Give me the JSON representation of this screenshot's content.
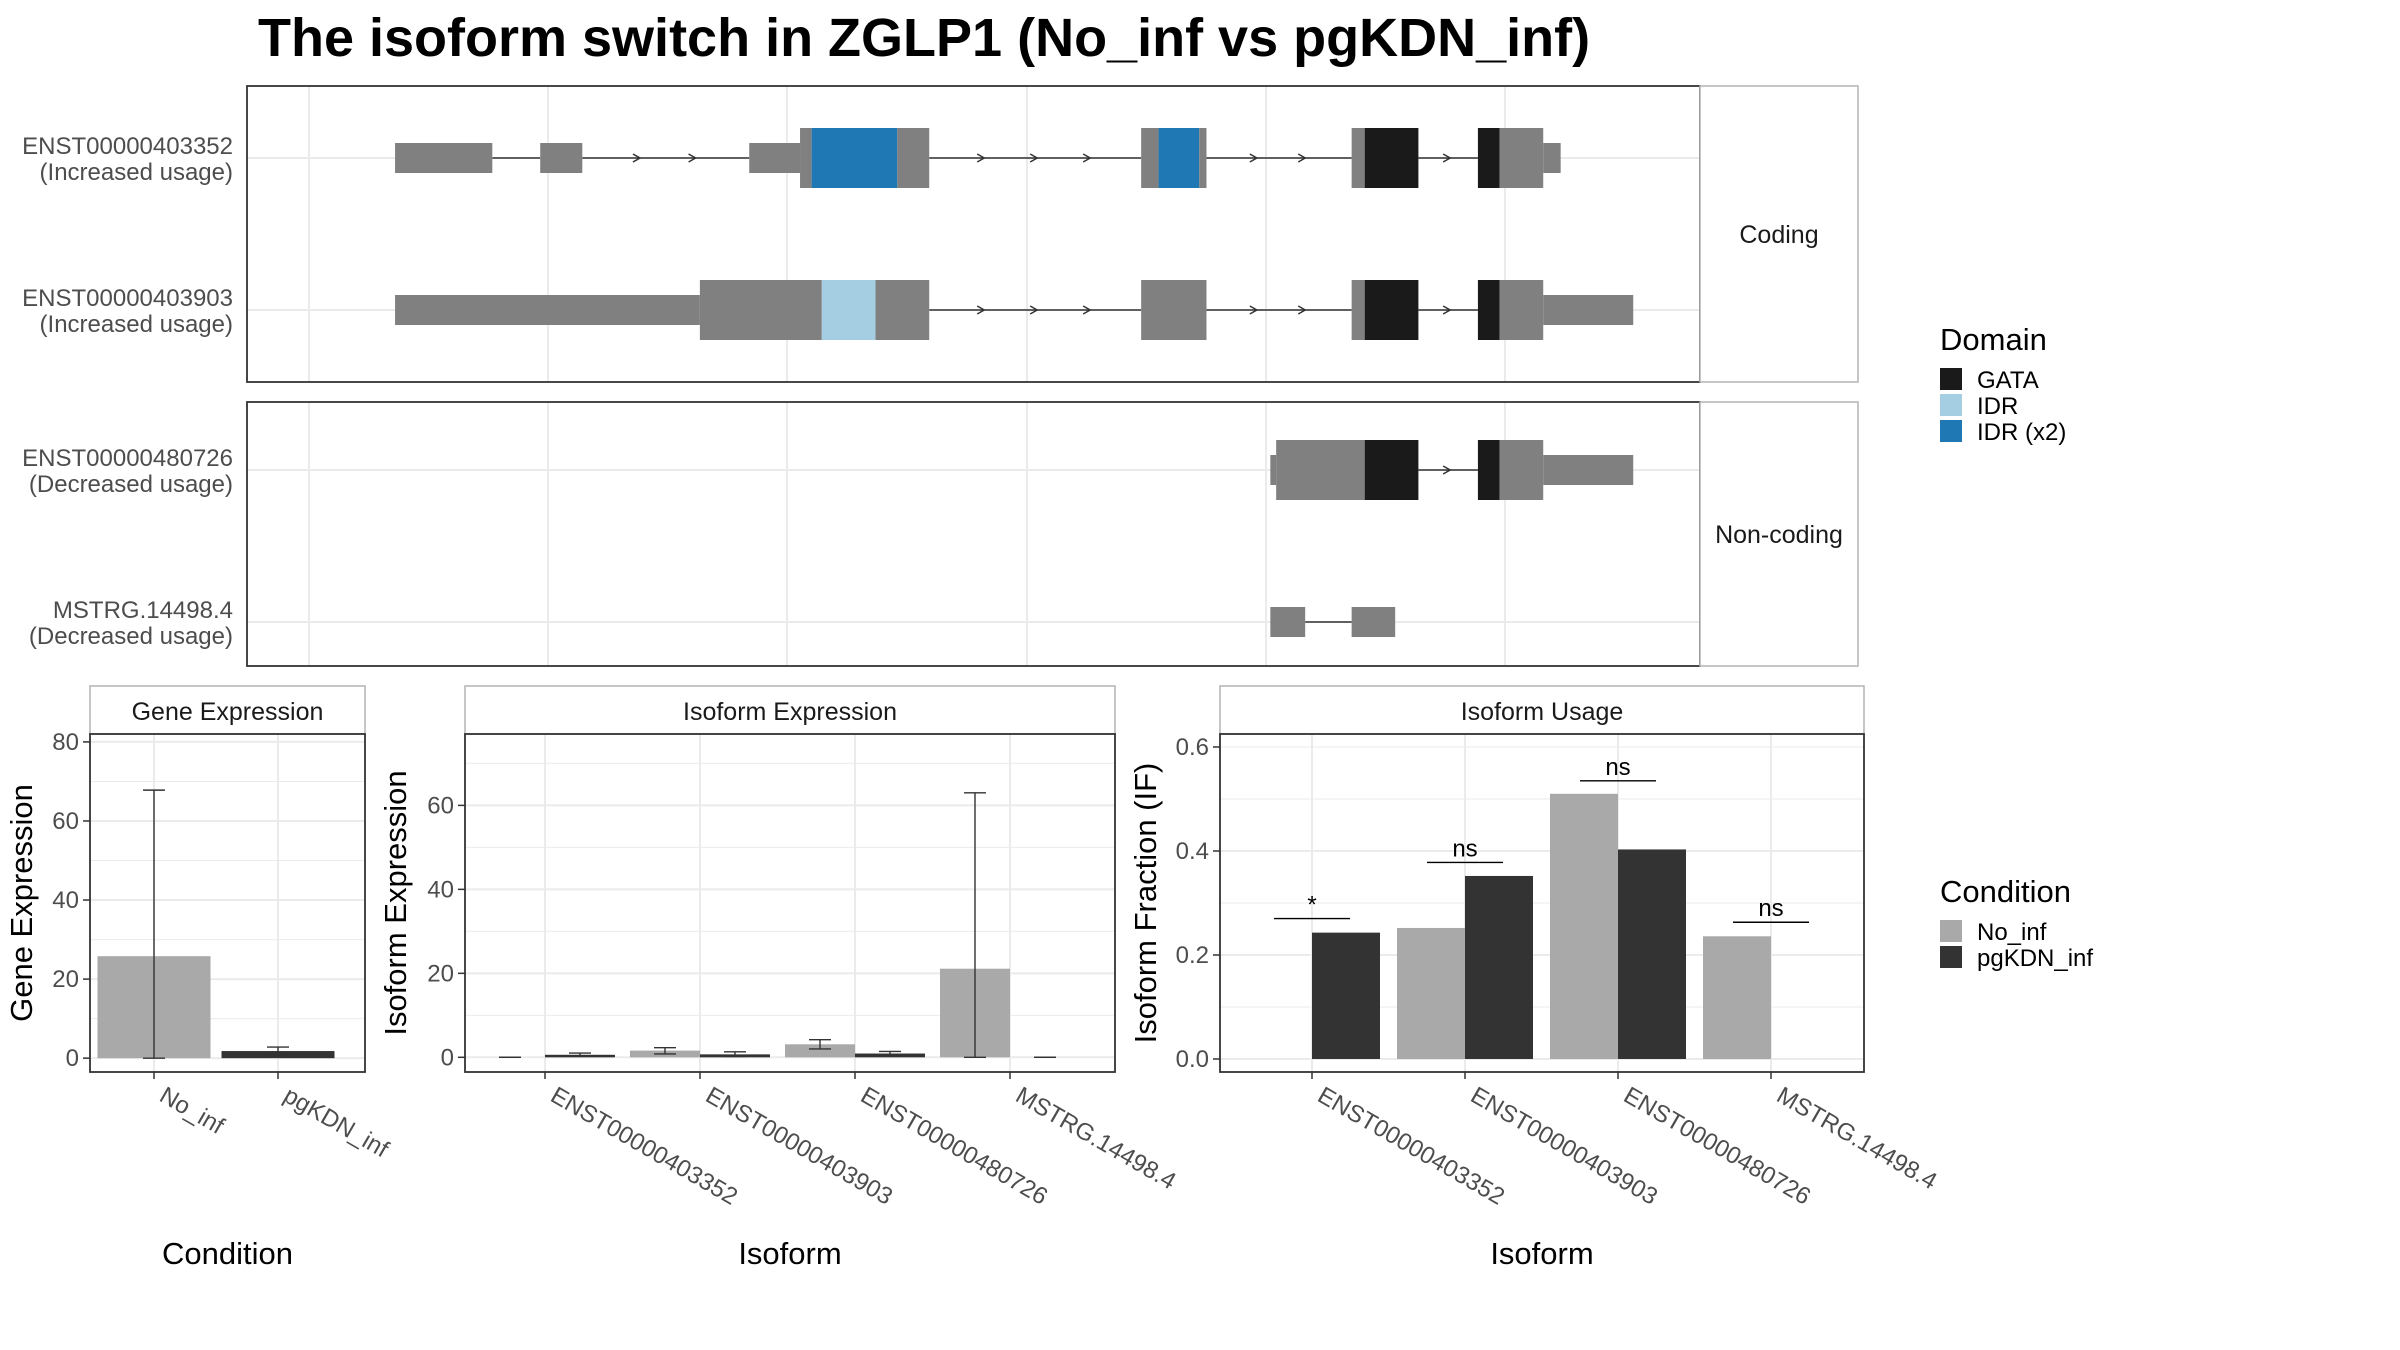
{
  "title": "The isoform switch in ZGLP1 (No_inf vs pgKDN_inf)",
  "colors": {
    "exon": "#808080",
    "GATA": "#1a1a1a",
    "IDR": "#a6cee3",
    "IDR (x2)": "#1f78b4",
    "No_inf": "#a9a9a9",
    "pgKDN_inf": "#333333"
  },
  "chart_data": [
    {
      "type": "gene-structure",
      "x_coordinates": "genomic (schematic, unlabeled)",
      "facets": [
        {
          "label": "Coding",
          "transcripts": [
            {
              "id": "ENST00000403352",
              "usage": "(Increased usage)",
              "segments": [
                {
                  "start": 202,
                  "end": 269,
                  "kind": "utr"
                },
                {
                  "start": 302,
                  "end": 331,
                  "kind": "utr"
                },
                {
                  "start": 446,
                  "end": 481,
                  "kind": "utr"
                },
                {
                  "start": 481,
                  "end": 489,
                  "kind": "cds"
                },
                {
                  "start": 489,
                  "end": 548,
                  "kind": "IDR (x2)"
                },
                {
                  "start": 548,
                  "end": 570,
                  "kind": "cds"
                },
                {
                  "start": 716,
                  "end": 728,
                  "kind": "cds"
                },
                {
                  "start": 728,
                  "end": 756,
                  "kind": "IDR (x2)"
                },
                {
                  "start": 756,
                  "end": 761,
                  "kind": "cds"
                },
                {
                  "start": 861,
                  "end": 870,
                  "kind": "cds"
                },
                {
                  "start": 870,
                  "end": 907,
                  "kind": "GATA"
                },
                {
                  "start": 948,
                  "end": 963,
                  "kind": "GATA"
                },
                {
                  "start": 963,
                  "end": 993,
                  "kind": "cds"
                },
                {
                  "start": 993,
                  "end": 1005,
                  "kind": "utr"
                }
              ]
            },
            {
              "id": "ENST00000403903",
              "usage": "(Increased usage)",
              "segments": [
                {
                  "start": 202,
                  "end": 412,
                  "kind": "utr"
                },
                {
                  "start": 412,
                  "end": 496,
                  "kind": "cds"
                },
                {
                  "start": 496,
                  "end": 533,
                  "kind": "IDR"
                },
                {
                  "start": 533,
                  "end": 570,
                  "kind": "cds"
                },
                {
                  "start": 716,
                  "end": 761,
                  "kind": "cds"
                },
                {
                  "start": 861,
                  "end": 870,
                  "kind": "cds"
                },
                {
                  "start": 870,
                  "end": 907,
                  "kind": "GATA"
                },
                {
                  "start": 948,
                  "end": 963,
                  "kind": "GATA"
                },
                {
                  "start": 963,
                  "end": 993,
                  "kind": "cds"
                },
                {
                  "start": 993,
                  "end": 1055,
                  "kind": "utr"
                }
              ]
            }
          ]
        },
        {
          "label": "Non-coding",
          "transcripts": [
            {
              "id": "ENST00000480726",
              "usage": "(Decreased usage)",
              "segments": [
                {
                  "start": 805,
                  "end": 809,
                  "kind": "utr"
                },
                {
                  "start": 809,
                  "end": 870,
                  "kind": "cds"
                },
                {
                  "start": 870,
                  "end": 907,
                  "kind": "GATA"
                },
                {
                  "start": 948,
                  "end": 963,
                  "kind": "GATA"
                },
                {
                  "start": 963,
                  "end": 993,
                  "kind": "cds"
                },
                {
                  "start": 993,
                  "end": 1055,
                  "kind": "utr"
                }
              ]
            },
            {
              "id": "MSTRG.14498.4",
              "usage": "(Decreased usage)",
              "segments": [
                {
                  "start": 805,
                  "end": 829,
                  "kind": "utr"
                },
                {
                  "start": 861,
                  "end": 891,
                  "kind": "utr"
                }
              ]
            }
          ]
        }
      ],
      "legend": {
        "title": "Domain",
        "entries": [
          "GATA",
          "IDR",
          "IDR (x2)"
        ],
        "placement": "right"
      }
    },
    {
      "type": "bar",
      "panel_title": "Gene Expression",
      "xlabel": "Condition",
      "ylabel": "Gene Expression",
      "categories": [
        "No_inf",
        "pgKDN_inf"
      ],
      "values": [
        25.8,
        1.8
      ],
      "error": [
        [
          0,
          67.8
        ],
        [
          0.8,
          2.8
        ]
      ],
      "ylim": [
        -3.5,
        82
      ],
      "yticks": [
        0,
        20,
        40,
        60,
        80
      ],
      "grid": true
    },
    {
      "type": "bar",
      "panel_title": "Isoform Expression",
      "xlabel": "Isoform",
      "ylabel": "Isoform Expression",
      "categories": [
        "ENST00000403352",
        "ENST00000403903",
        "ENST00000480726",
        "MSTRG.14498.4"
      ],
      "series": [
        {
          "name": "No_inf",
          "values": [
            0,
            1.6,
            3.1,
            21.1
          ],
          "error": [
            [
              0,
              0
            ],
            [
              0.8,
              2.3
            ],
            [
              2.0,
              4.2
            ],
            [
              0,
              63.0
            ]
          ]
        },
        {
          "name": "pgKDN_inf",
          "values": [
            0.6,
            0.7,
            0.9,
            0
          ],
          "error": [
            [
              0.3,
              1.0
            ],
            [
              0.2,
              1.3
            ],
            [
              0.5,
              1.4
            ],
            [
              0,
              0
            ]
          ]
        }
      ],
      "ylim": [
        -3.5,
        77
      ],
      "yticks": [
        0,
        20,
        40,
        60
      ],
      "grid": true
    },
    {
      "type": "bar",
      "panel_title": "Isoform Usage",
      "xlabel": "Isoform",
      "ylabel": "Isoform Fraction (IF)",
      "categories": [
        "ENST00000403352",
        "ENST00000403903",
        "ENST00000480726",
        "MSTRG.14498.4"
      ],
      "series": [
        {
          "name": "No_inf",
          "values": [
            0,
            0.252,
            0.51,
            0.236
          ]
        },
        {
          "name": "pgKDN_inf",
          "values": [
            0.243,
            0.352,
            0.403,
            0
          ]
        }
      ],
      "significance": [
        "*",
        "ns",
        "ns",
        "ns"
      ],
      "sig_y": [
        0.27,
        0.378,
        0.535,
        0.263
      ],
      "ylim": [
        -0.025,
        0.625
      ],
      "yticks": [
        0.0,
        0.2,
        0.4,
        0.6
      ],
      "grid": true,
      "legend": {
        "title": "Condition",
        "entries": [
          "No_inf",
          "pgKDN_inf"
        ],
        "placement": "right"
      }
    }
  ]
}
